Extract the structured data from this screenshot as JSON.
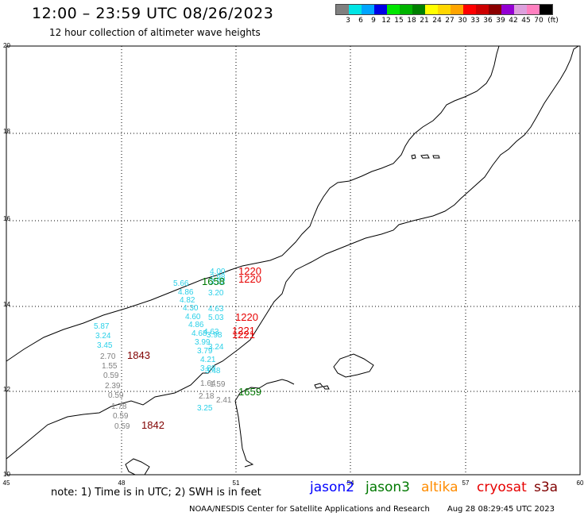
{
  "header": {
    "title": "12:00 – 23:59 UTC 08/26/2023",
    "subtitle": "12 hour collection of altimeter wave heights"
  },
  "legend": {
    "colors": [
      "#808080",
      "#00e5e5",
      "#00a5ff",
      "#0000e6",
      "#00e600",
      "#00b400",
      "#008000",
      "#ffff00",
      "#ffd700",
      "#ffa500",
      "#ff0000",
      "#cd0000",
      "#8b0000",
      "#9400d3",
      "#dda0dd",
      "#ff80c0",
      "#000000"
    ],
    "labels": [
      "3",
      "6",
      "9",
      "12",
      "15",
      "18",
      "21",
      "24",
      "27",
      "30",
      "33",
      "36",
      "39",
      "42",
      "45",
      "70"
    ],
    "unit": "(ft)"
  },
  "axes": {
    "x_ticks": [
      "45",
      "48",
      "51",
      "54",
      "57",
      "60"
    ],
    "y_ticks": [
      "20",
      "18",
      "16",
      "14",
      "12",
      "10"
    ]
  },
  "colors": {
    "cyan": "#2ad0e8",
    "gray": "#808080",
    "red": "#e60000",
    "darkred": "#800000",
    "green": "#007800",
    "blue": "#0000ff",
    "orange": "#ff8c00"
  },
  "observations": {
    "cyan": [
      "4.00",
      "5.66",
      "4.86",
      "4.82",
      "4.30",
      "4.60",
      "4.86",
      "4.68",
      "3.99",
      "3.79",
      "4.21",
      "5.87",
      "3.24",
      "3.45",
      "4.63",
      "5.03",
      "4.63",
      "3.98",
      "3.24",
      "3.20",
      "3.52",
      "2.98",
      "3.88",
      "3.48",
      "3.25"
    ],
    "gray": [
      "2.70",
      "1.55",
      "0.59",
      "2.39",
      "0.59",
      "1.78",
      "0.59",
      "0.59",
      "2.18",
      "1.64",
      "1.59",
      "2.41"
    ],
    "time_labels": [
      "1220",
      "1220",
      "1220",
      "1221",
      "1221",
      "1843",
      "1842",
      "1658",
      "1659"
    ]
  },
  "note": "note: 1) Time is in UTC; 2) SWH is in feet",
  "satellites": [
    "jason2",
    "jason3",
    "altika",
    "cryosat",
    "s3a"
  ],
  "footer": {
    "credit": "NOAA/NESDIS Center for Satellite Applications and Research",
    "timestamp": "Aug 28 08:29:45 UTC 2023"
  }
}
